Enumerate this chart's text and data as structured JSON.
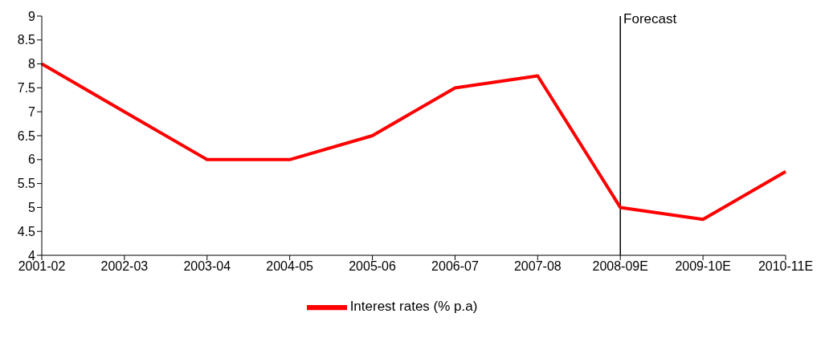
{
  "chart_data": {
    "type": "line",
    "categories": [
      "2001-02",
      "2002-03",
      "2003-04",
      "2004-05",
      "2005-06",
      "2006-07",
      "2007-08",
      "2008-09E",
      "2009-10E",
      "2010-11E"
    ],
    "series": [
      {
        "name": "Interest rates (% p.a)",
        "color": "#ff0000",
        "values": [
          8,
          7,
          6,
          6,
          6.5,
          7.5,
          7.75,
          5,
          4.75,
          5.75
        ]
      }
    ],
    "ylim": [
      4,
      9
    ],
    "yticks": [
      4,
      4.5,
      5,
      5.5,
      6,
      6.5,
      7,
      7.5,
      8,
      8.5,
      9
    ],
    "ref_lines": [
      {
        "axis": "x",
        "value": "2008-09E",
        "label": "Forecast",
        "color": "#000000"
      }
    ],
    "grid": false,
    "legend": "bottom",
    "marker": "none",
    "line_style": "solid"
  }
}
